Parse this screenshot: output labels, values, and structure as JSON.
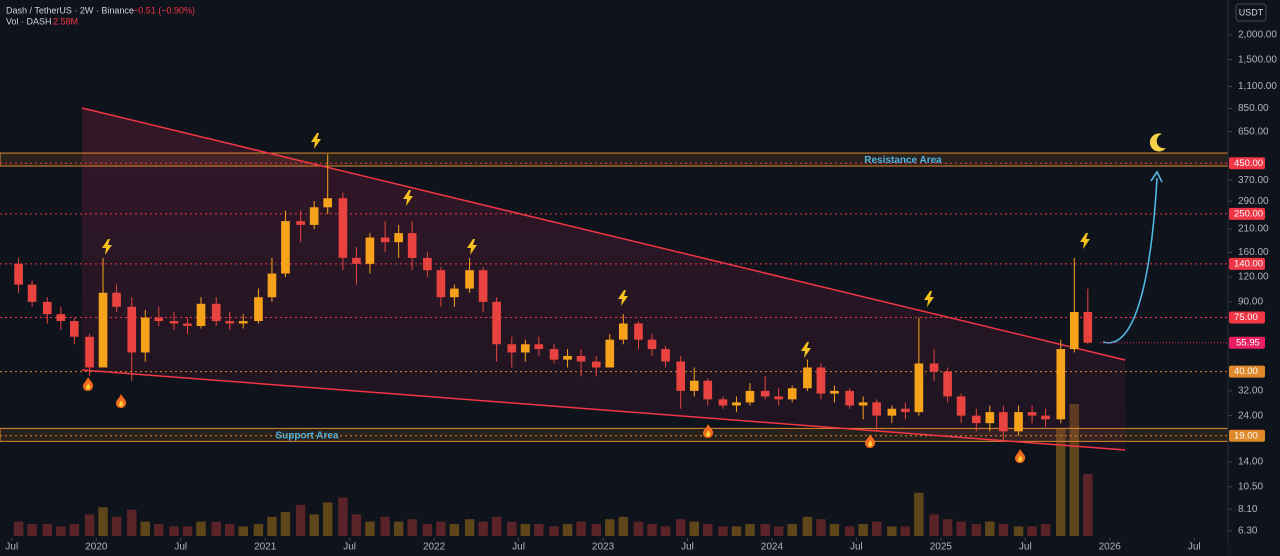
{
  "chart_data": {
    "type": "candlestick",
    "title": "Dash / TetherUS · 2W · Binance",
    "change": "−0.51 (−0.90%)",
    "vol_label": "Vol · DASH",
    "vol_value": "2.58M",
    "currency": "USDT",
    "log_scale": true,
    "up_color": "#f7a21b",
    "down_color": "#e8433e",
    "x": [
      2019.5,
      2019.58,
      2019.67,
      2019.75,
      2019.83,
      2019.92,
      2020.0,
      2020.08,
      2020.17,
      2020.25,
      2020.33,
      2020.42,
      2020.5,
      2020.58,
      2020.67,
      2020.75,
      2020.83,
      2020.92,
      2021.0,
      2021.08,
      2021.17,
      2021.25,
      2021.33,
      2021.42,
      2021.5,
      2021.58,
      2021.67,
      2021.75,
      2021.83,
      2021.92,
      2022.0,
      2022.08,
      2022.17,
      2022.25,
      2022.33,
      2022.42,
      2022.5,
      2022.58,
      2022.67,
      2022.75,
      2022.83,
      2022.92,
      2023.0,
      2023.08,
      2023.17,
      2023.25,
      2023.33,
      2023.42,
      2023.5,
      2023.58,
      2023.67,
      2023.75,
      2023.83,
      2023.92,
      2024.0,
      2024.08,
      2024.17,
      2024.25,
      2024.33,
      2024.42,
      2024.5,
      2024.58,
      2024.67,
      2024.75,
      2024.83,
      2024.92,
      2025.0,
      2025.08,
      2025.17,
      2025.25,
      2025.33,
      2025.42,
      2025.5,
      2025.58,
      2025.67,
      2025.75,
      2025.83
    ],
    "open": [
      140,
      110,
      90,
      78,
      72,
      60,
      42,
      100,
      85,
      50,
      75,
      72,
      70,
      68,
      88,
      72,
      70,
      72,
      95,
      125,
      230,
      220,
      270,
      300,
      150,
      140,
      190,
      180,
      200,
      150,
      130,
      95,
      105,
      130,
      90,
      55,
      50,
      55,
      52,
      46,
      48,
      45,
      42,
      58,
      70,
      58,
      52,
      45,
      32,
      36,
      29,
      27,
      28,
      32,
      30,
      29,
      33,
      42,
      31,
      32,
      27,
      28,
      24,
      26,
      25,
      44,
      40,
      30,
      24,
      22,
      25,
      20,
      25,
      24,
      23,
      52,
      80
    ],
    "high": [
      150,
      115,
      95,
      85,
      75,
      62,
      150,
      110,
      95,
      82,
      85,
      80,
      75,
      95,
      95,
      80,
      78,
      105,
      150,
      260,
      260,
      290,
      500,
      320,
      170,
      200,
      230,
      220,
      230,
      160,
      135,
      110,
      150,
      135,
      95,
      60,
      58,
      60,
      55,
      52,
      52,
      48,
      62,
      78,
      72,
      62,
      54,
      48,
      42,
      37,
      30,
      30,
      35,
      38,
      33,
      34,
      46,
      44,
      34,
      33,
      30,
      29,
      27,
      28,
      75,
      52,
      42,
      31,
      26,
      27,
      27,
      27,
      27,
      26,
      58,
      150,
      105
    ],
    "low": [
      100,
      85,
      70,
      65,
      55,
      38,
      42,
      80,
      36,
      45,
      68,
      65,
      62,
      66,
      68,
      65,
      66,
      70,
      90,
      120,
      180,
      210,
      250,
      130,
      110,
      125,
      160,
      150,
      130,
      120,
      85,
      85,
      100,
      80,
      45,
      42,
      45,
      48,
      44,
      42,
      38,
      38,
      42,
      55,
      52,
      48,
      42,
      26,
      30,
      27,
      26,
      25,
      27,
      29,
      27,
      28,
      32,
      29,
      28,
      26,
      23,
      20,
      22,
      23,
      24,
      36,
      28,
      22,
      20,
      20,
      18,
      19,
      22,
      21,
      22,
      50,
      55
    ],
    "close": [
      110,
      90,
      78,
      72,
      60,
      42,
      100,
      85,
      50,
      75,
      72,
      70,
      68,
      88,
      72,
      70,
      72,
      95,
      125,
      230,
      220,
      270,
      300,
      150,
      140,
      190,
      180,
      200,
      150,
      130,
      95,
      105,
      130,
      90,
      55,
      50,
      55,
      52,
      46,
      48,
      45,
      42,
      58,
      70,
      58,
      52,
      45,
      32,
      36,
      29,
      27,
      28,
      32,
      30,
      29,
      33,
      42,
      31,
      32,
      27,
      28,
      24,
      26,
      25,
      44,
      40,
      30,
      24,
      22,
      25,
      20,
      25,
      24,
      23,
      52,
      80,
      55.95
    ],
    "volume": [
      0.6,
      0.5,
      0.5,
      0.4,
      0.5,
      0.9,
      1.2,
      0.8,
      1.1,
      0.6,
      0.5,
      0.4,
      0.4,
      0.6,
      0.6,
      0.5,
      0.4,
      0.5,
      0.8,
      1.0,
      1.3,
      0.9,
      1.4,
      1.6,
      0.9,
      0.6,
      0.8,
      0.6,
      0.7,
      0.5,
      0.6,
      0.5,
      0.7,
      0.6,
      0.8,
      0.6,
      0.5,
      0.5,
      0.4,
      0.5,
      0.6,
      0.5,
      0.7,
      0.8,
      0.6,
      0.5,
      0.4,
      0.7,
      0.6,
      0.5,
      0.4,
      0.4,
      0.5,
      0.5,
      0.4,
      0.5,
      0.8,
      0.7,
      0.5,
      0.4,
      0.5,
      0.6,
      0.4,
      0.4,
      1.8,
      0.9,
      0.7,
      0.6,
      0.5,
      0.6,
      0.5,
      0.4,
      0.4,
      0.5,
      4.5,
      5.5,
      2.58
    ],
    "xlim": [
      2019.43,
      2026.7
    ],
    "ylim": [
      4.7,
      3000
    ],
    "xticks": [
      {
        "value": 2019.5,
        "label": "Jul"
      },
      2020,
      {
        "value": 2020.5,
        "label": "Jul"
      },
      2021,
      {
        "value": 2021.5,
        "label": "Jul"
      },
      2022,
      {
        "value": 2022.5,
        "label": "Jul"
      },
      2023,
      {
        "value": 2023.5,
        "label": "Jul"
      },
      2024,
      {
        "value": 2024.5,
        "label": "Jul"
      },
      2025,
      {
        "value": 2025.5,
        "label": "Jul"
      },
      2026,
      {
        "value": 2026.5,
        "label": "Jul"
      }
    ],
    "yticks": [
      {
        "value": 2000,
        "label": "2,000.00"
      },
      {
        "value": 1500,
        "label": "1,500.00"
      },
      {
        "value": 1100,
        "label": "1,100.00"
      },
      {
        "value": 850,
        "label": "850.00"
      },
      {
        "value": 650,
        "label": "650.00"
      },
      {
        "value": 370,
        "label": "370.00"
      },
      {
        "value": 290,
        "label": "290.00"
      },
      {
        "value": 210,
        "label": "210.00"
      },
      {
        "value": 160,
        "label": "160.00"
      },
      {
        "value": 120,
        "label": "120.00"
      },
      {
        "value": 90,
        "label": "90.00"
      },
      {
        "value": 32,
        "label": "32.00"
      },
      {
        "value": 24,
        "label": "24.00"
      },
      {
        "value": 14,
        "label": "14.00"
      },
      {
        "value": 10.5,
        "label": "10.50"
      },
      {
        "value": 8.1,
        "label": "8.10"
      },
      {
        "value": 6.3,
        "label": "6.30"
      }
    ],
    "levels": [
      {
        "value": 450,
        "label": "450.00",
        "color": "#f23645"
      },
      {
        "value": 250,
        "label": "250.00",
        "color": "#f23645"
      },
      {
        "value": 140,
        "label": "140.00",
        "color": "#f23645"
      },
      {
        "value": 75,
        "label": "75.00",
        "color": "#f23645"
      },
      {
        "value": 40,
        "label": "40.00",
        "color": "#e0892c"
      },
      {
        "value": 19,
        "label": "19.00",
        "color": "#e0892c"
      }
    ],
    "zones": [
      {
        "name": "Resistance Area",
        "low": 436,
        "high": 507,
        "color": "#e0892c"
      },
      {
        "name": "Support Area",
        "low": 17.8,
        "high": 20.7,
        "color": "#e0892c"
      }
    ],
    "last_color": "#e91e63"
  }
}
